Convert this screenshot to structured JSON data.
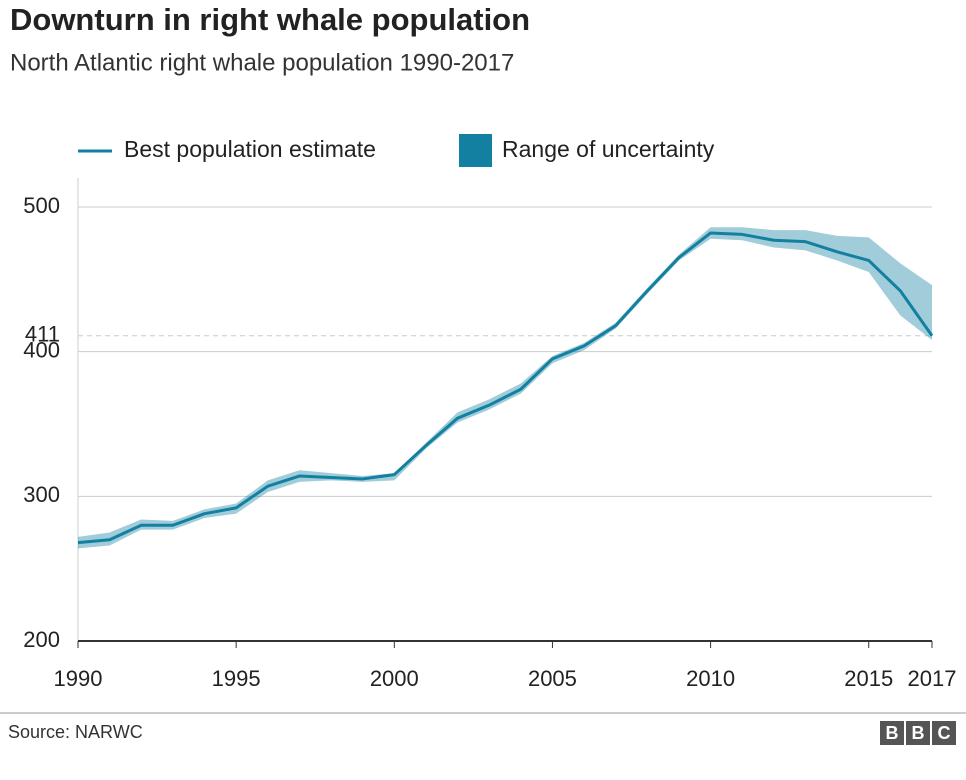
{
  "chart_data": {
    "type": "line",
    "title": "Downturn in right whale population",
    "subtitle": "North Atlantic right whale population 1990-2017",
    "x": [
      1990,
      1991,
      1992,
      1993,
      1994,
      1995,
      1996,
      1997,
      1998,
      1999,
      2000,
      2001,
      2002,
      2003,
      2004,
      2005,
      2006,
      2007,
      2008,
      2009,
      2010,
      2011,
      2012,
      2013,
      2014,
      2015,
      2016,
      2017
    ],
    "series": [
      {
        "name": "Best population estimate",
        "color": "#1380a1",
        "values": [
          268,
          270,
          280,
          280,
          288,
          292,
          307,
          314,
          313,
          312,
          315,
          335,
          354,
          363,
          374,
          395,
          404,
          418,
          442,
          465,
          482,
          481,
          477,
          476,
          469,
          463,
          442,
          411
        ]
      }
    ],
    "band": {
      "name": "Range of uncertainty",
      "color": "#1380a1",
      "low": [
        264,
        266,
        277,
        277,
        285,
        288,
        303,
        310,
        311,
        310,
        311,
        333,
        351,
        360,
        371,
        392,
        401,
        416,
        440,
        463,
        478,
        477,
        472,
        470,
        463,
        455,
        425,
        408
      ],
      "high": [
        272,
        275,
        284,
        283,
        291,
        295,
        311,
        318,
        316,
        314,
        316,
        337,
        358,
        367,
        378,
        397,
        406,
        420,
        444,
        467,
        486,
        486,
        484,
        484,
        480,
        479,
        461,
        446
      ]
    },
    "xlim": [
      1990,
      2017
    ],
    "xticks": [
      1990,
      1995,
      2000,
      2005,
      2010,
      2015,
      2017
    ],
    "ylim": [
      200,
      520
    ],
    "yticks": [
      200,
      300,
      400,
      500
    ],
    "reference_line": 411,
    "grid": true,
    "source": "Source: NARWC",
    "logo": [
      "B",
      "B",
      "C"
    ]
  }
}
